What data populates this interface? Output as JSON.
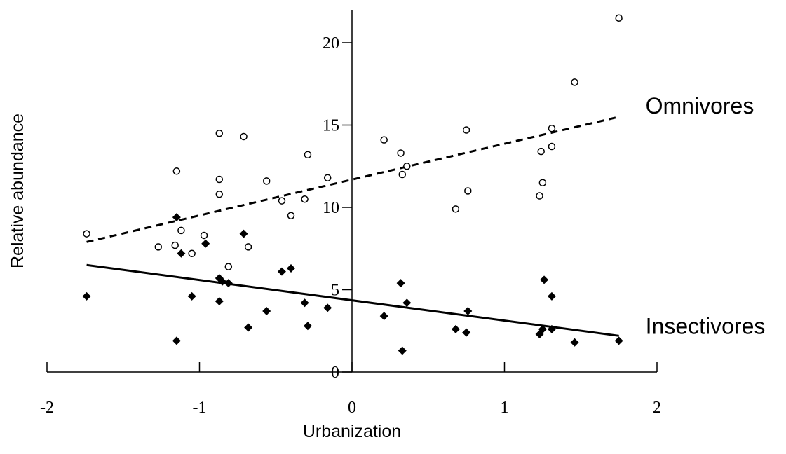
{
  "chart_data": {
    "type": "scatter",
    "xlabel": "Urbanization",
    "ylabel": "Relative abundance",
    "xlim": [
      -2,
      2
    ],
    "ylim": [
      0,
      22
    ],
    "x_ticks": [
      -2,
      -1,
      0,
      1,
      2
    ],
    "x_tick_labels": [
      "-2",
      "-1",
      "0",
      "1",
      "2"
    ],
    "y_ticks": [
      0,
      5,
      10,
      15,
      20
    ],
    "y_tick_labels": [
      "0",
      "5",
      "10",
      "15",
      "20"
    ],
    "y_axis_at_x": 0,
    "x_axis_at_y": 0,
    "grid": false,
    "series": [
      {
        "name": "Omnivores",
        "marker": "open-circle",
        "color": "#000000",
        "points": [
          [
            -1.74,
            8.4
          ],
          [
            -1.27,
            7.6
          ],
          [
            -1.16,
            7.7
          ],
          [
            -1.15,
            12.2
          ],
          [
            -1.12,
            8.6
          ],
          [
            -1.05,
            7.2
          ],
          [
            -0.97,
            8.3
          ],
          [
            -0.87,
            14.5
          ],
          [
            -0.87,
            11.7
          ],
          [
            -0.87,
            10.8
          ],
          [
            -0.81,
            6.4
          ],
          [
            -0.71,
            14.3
          ],
          [
            -0.68,
            7.6
          ],
          [
            -0.56,
            11.6
          ],
          [
            -0.46,
            10.4
          ],
          [
            -0.4,
            9.5
          ],
          [
            -0.31,
            10.5
          ],
          [
            -0.29,
            13.2
          ],
          [
            -0.16,
            11.8
          ],
          [
            0.21,
            14.1
          ],
          [
            0.32,
            13.3
          ],
          [
            0.33,
            12.0
          ],
          [
            0.36,
            12.5
          ],
          [
            0.68,
            9.9
          ],
          [
            0.75,
            14.7
          ],
          [
            0.76,
            11.0
          ],
          [
            1.23,
            10.7
          ],
          [
            1.24,
            13.4
          ],
          [
            1.25,
            11.5
          ],
          [
            1.31,
            13.7
          ],
          [
            1.31,
            14.8
          ],
          [
            1.46,
            17.6
          ],
          [
            1.75,
            21.5
          ]
        ],
        "trend": {
          "style": "dashed",
          "x": [
            -1.74,
            1.75
          ],
          "y": [
            7.9,
            15.5
          ]
        },
        "label": "Omnivores"
      },
      {
        "name": "Insectivores",
        "marker": "filled-diamond",
        "color": "#000000",
        "points": [
          [
            -1.74,
            4.6
          ],
          [
            -1.15,
            1.9
          ],
          [
            -1.15,
            9.4
          ],
          [
            -1.12,
            7.2
          ],
          [
            -1.05,
            4.6
          ],
          [
            -0.96,
            7.8
          ],
          [
            -0.87,
            5.7
          ],
          [
            -0.87,
            4.3
          ],
          [
            -0.85,
            5.5
          ],
          [
            -0.81,
            5.4
          ],
          [
            -0.71,
            8.4
          ],
          [
            -0.68,
            2.7
          ],
          [
            -0.56,
            3.7
          ],
          [
            -0.46,
            6.1
          ],
          [
            -0.4,
            6.3
          ],
          [
            -0.31,
            4.2
          ],
          [
            -0.29,
            2.8
          ],
          [
            -0.16,
            3.9
          ],
          [
            0.21,
            3.4
          ],
          [
            0.32,
            5.4
          ],
          [
            0.33,
            1.3
          ],
          [
            0.36,
            4.2
          ],
          [
            0.68,
            2.6
          ],
          [
            0.75,
            2.4
          ],
          [
            0.76,
            3.7
          ],
          [
            1.23,
            2.3
          ],
          [
            1.25,
            2.6
          ],
          [
            1.26,
            5.6
          ],
          [
            1.31,
            4.6
          ],
          [
            1.31,
            2.6
          ],
          [
            1.46,
            1.8
          ],
          [
            1.75,
            1.9
          ]
        ],
        "trend": {
          "style": "solid",
          "x": [
            -1.74,
            1.75
          ],
          "y": [
            6.5,
            2.2
          ]
        },
        "label": "Insectivores"
      }
    ]
  }
}
